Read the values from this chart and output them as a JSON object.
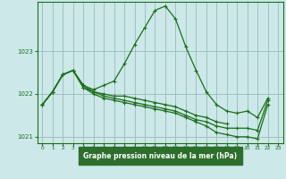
{
  "title": "Graphe pression niveau de la mer (hPa)",
  "bg_color": "#cce8e8",
  "label_bg": "#2d6e2d",
  "label_fg": "#ffffff",
  "grid_color": "#99bbbb",
  "line_color": "#1a6e1a",
  "marker": "+",
  "xlim": [
    -0.5,
    23.5
  ],
  "ylim": [
    1020.85,
    1024.15
  ],
  "yticks": [
    1021,
    1022,
    1023
  ],
  "xticks": [
    0,
    1,
    2,
    3,
    4,
    5,
    6,
    7,
    8,
    9,
    10,
    11,
    12,
    13,
    14,
    15,
    16,
    17,
    18,
    19,
    20,
    21,
    22,
    23
  ],
  "series": [
    [
      1021.75,
      1022.05,
      1022.45,
      1022.55,
      1022.2,
      1022.1,
      1022.2,
      1022.3,
      1022.7,
      1023.15,
      1023.55,
      1023.95,
      1024.05,
      1023.75,
      1023.1,
      1022.55,
      1022.05,
      1021.75,
      1021.6,
      1021.55,
      1021.6,
      1021.45,
      1021.9,
      null
    ],
    [
      1021.75,
      1022.05,
      1022.45,
      1022.55,
      1022.2,
      1022.05,
      1022.0,
      1021.95,
      1021.95,
      1021.9,
      1021.85,
      1021.8,
      1021.75,
      1021.7,
      1021.6,
      1021.5,
      1021.45,
      1021.35,
      1021.3,
      null,
      null,
      null,
      null,
      null
    ],
    [
      1021.75,
      1022.05,
      1022.45,
      1022.55,
      1022.15,
      1022.05,
      1021.95,
      1021.9,
      1021.85,
      1021.8,
      1021.75,
      1021.7,
      1021.65,
      1021.6,
      1021.5,
      1021.4,
      1021.35,
      1021.25,
      1021.2,
      1021.2,
      1021.2,
      1021.15,
      1021.85,
      null
    ],
    [
      1021.75,
      1022.05,
      1022.45,
      1022.55,
      1022.15,
      1022.0,
      1021.9,
      1021.85,
      1021.8,
      1021.75,
      1021.7,
      1021.65,
      1021.6,
      1021.55,
      1021.45,
      1021.35,
      1021.25,
      1021.1,
      1021.05,
      1021.0,
      1021.0,
      1020.95,
      1021.75,
      null
    ]
  ]
}
